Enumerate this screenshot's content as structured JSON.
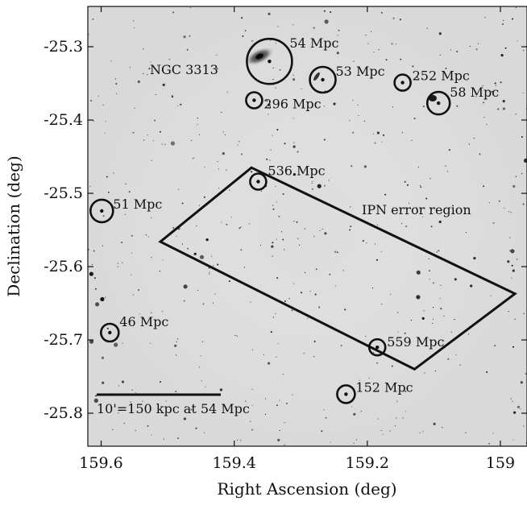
{
  "axes": {
    "xlabel": "Right Ascension (deg)",
    "ylabel": "Declination (deg)",
    "xlim": [
      159.62,
      158.96
    ],
    "ylim": [
      -25.845,
      -25.245
    ],
    "x_ticks": [
      "159.6",
      "159.4",
      "159.2",
      "159"
    ],
    "y_ticks": [
      "-25.3",
      "-25.4",
      "-25.5",
      "-25.6",
      "-25.7",
      "-25.8"
    ]
  },
  "galaxies": [
    {
      "label": "54 Mpc",
      "ra": 159.347,
      "dec": -25.32,
      "host": true,
      "host_label": "NGC 3313"
    },
    {
      "label": "53 Mpc",
      "ra": 159.267,
      "dec": -25.345
    },
    {
      "label": "252 Mpc",
      "ra": 159.147,
      "dec": -25.349
    },
    {
      "label": "296 Mpc",
      "ra": 159.37,
      "dec": -25.373
    },
    {
      "label": "58 Mpc",
      "ra": 159.093,
      "dec": -25.377
    },
    {
      "label": "536 Mpc",
      "ra": 159.364,
      "dec": -25.484
    },
    {
      "label": "51 Mpc",
      "ra": 159.599,
      "dec": -25.524
    },
    {
      "label": "46 Mpc",
      "ra": 159.587,
      "dec": -25.69
    },
    {
      "label": "559 Mpc",
      "ra": 159.185,
      "dec": -25.71
    },
    {
      "label": "152 Mpc",
      "ra": 159.232,
      "dec": -25.774
    }
  ],
  "ipn_region": {
    "label": "IPN error region",
    "vertices": [
      [
        159.374,
        -25.465
      ],
      [
        158.978,
        -25.637
      ],
      [
        159.129,
        -25.74
      ],
      [
        159.511,
        -25.566
      ]
    ]
  },
  "scale_bar": {
    "label": "10'=150 kpc at 54 Mpc"
  },
  "colors": {
    "background": "#dcdcdc",
    "ink": "#111111"
  }
}
